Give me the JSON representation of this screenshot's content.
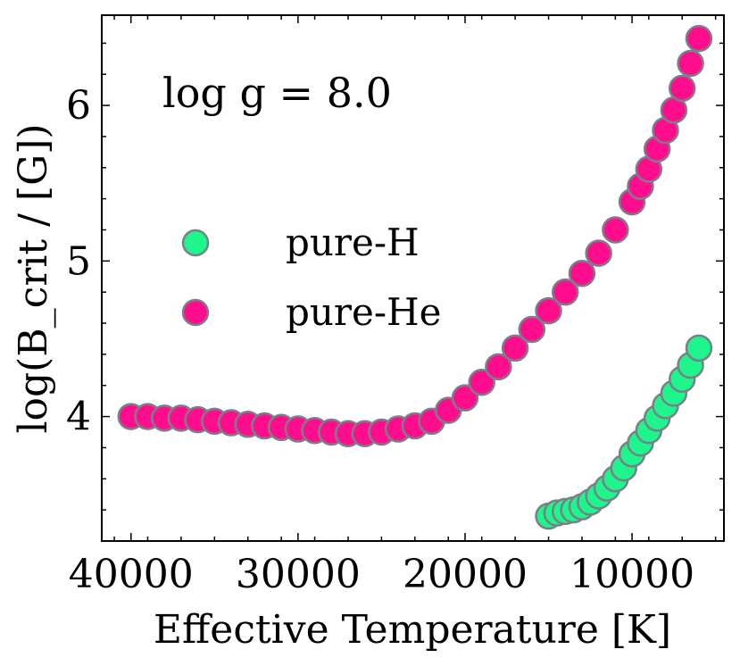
{
  "chart_data": {
    "type": "scatter",
    "title": "",
    "annotation": "log g = 8.0",
    "xlabel": "Effective Temperature [K]",
    "ylabel": "log(B_crit / [G])",
    "x_reversed": true,
    "xlim": [
      41750,
      4500
    ],
    "ylim": [
      3.2,
      6.58
    ],
    "xticks": [
      40000,
      30000,
      20000,
      10000
    ],
    "xtick_labels": [
      "40000",
      "30000",
      "20000",
      "10000"
    ],
    "yticks": [
      4,
      5,
      6
    ],
    "ytick_labels": [
      "4",
      "5",
      "6"
    ],
    "legend_position": "center-left",
    "series": [
      {
        "name": "pure-H",
        "color": "#1ef58a",
        "x": [
          15000,
          14500,
          14000,
          13500,
          13000,
          12500,
          12000,
          11500,
          11000,
          10500,
          10000,
          9500,
          9000,
          8500,
          8000,
          7500,
          7000,
          6500,
          6000
        ],
        "y": [
          3.36,
          3.38,
          3.39,
          3.4,
          3.42,
          3.45,
          3.49,
          3.54,
          3.6,
          3.67,
          3.76,
          3.83,
          3.91,
          3.99,
          4.07,
          4.15,
          4.24,
          4.33,
          4.44
        ]
      },
      {
        "name": "pure-He",
        "color": "#ff0d8c",
        "x": [
          40000,
          39000,
          38000,
          37000,
          36000,
          35000,
          34000,
          33000,
          32000,
          31000,
          30000,
          29000,
          28000,
          27000,
          26000,
          25000,
          24000,
          23000,
          22000,
          21000,
          20000,
          19000,
          18000,
          17000,
          16000,
          15000,
          14000,
          13000,
          12000,
          11000,
          10000,
          9500,
          9000,
          8500,
          8000,
          7500,
          7000,
          6500,
          6000
        ],
        "y": [
          4.0,
          4.0,
          3.99,
          3.99,
          3.98,
          3.97,
          3.96,
          3.95,
          3.94,
          3.93,
          3.92,
          3.91,
          3.9,
          3.89,
          3.89,
          3.9,
          3.92,
          3.94,
          3.97,
          4.04,
          4.12,
          4.22,
          4.32,
          4.44,
          4.56,
          4.68,
          4.8,
          4.92,
          5.05,
          5.2,
          5.38,
          5.48,
          5.59,
          5.72,
          5.84,
          5.97,
          6.11,
          6.27,
          6.43
        ]
      }
    ]
  }
}
